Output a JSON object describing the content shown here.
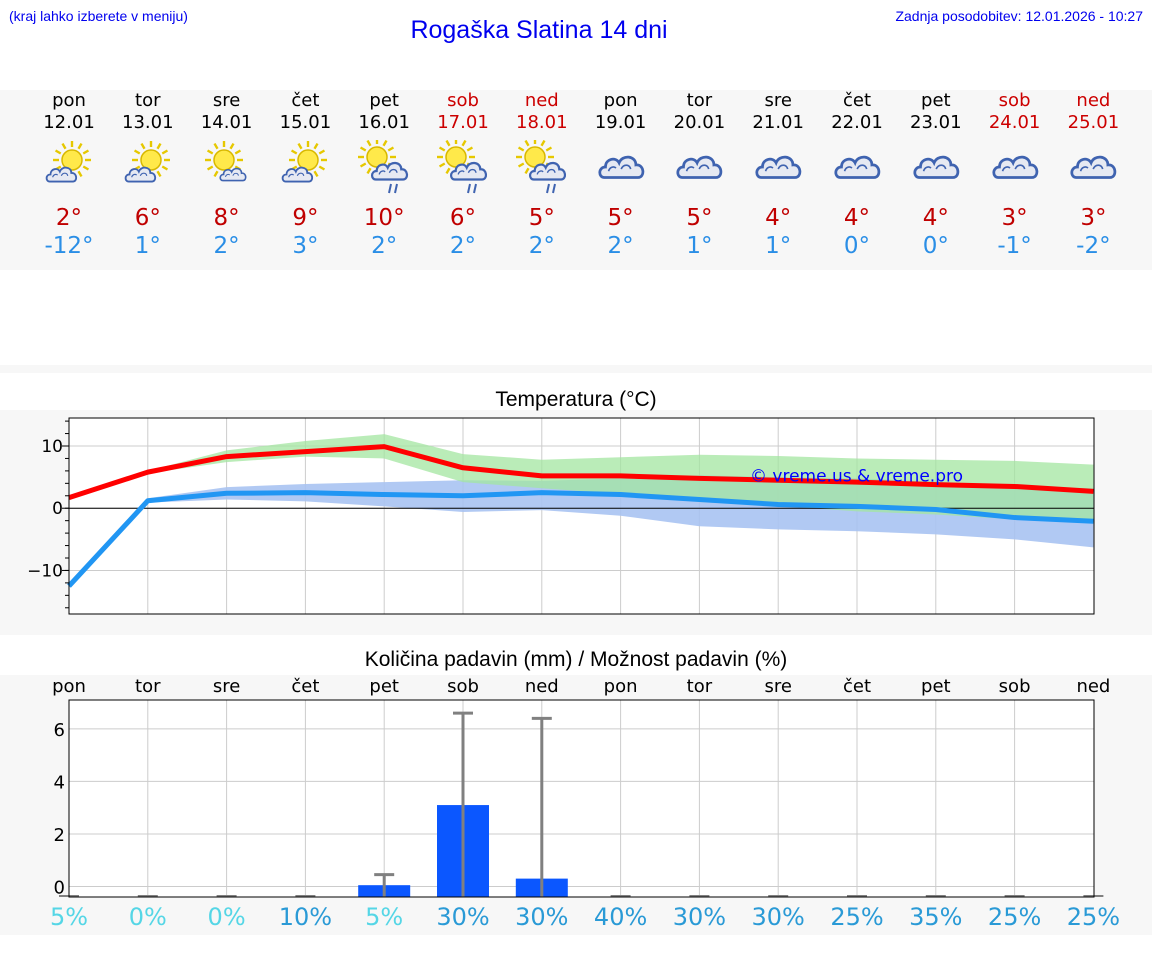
{
  "header": {
    "left_note": "(kraj lahko izberete v meniju)",
    "title": "Rogaška Slatina 14 dni",
    "updated": "Zadnja posodobitev: 12.01.2026 - 10:27"
  },
  "days": [
    {
      "name": "pon",
      "date": "12.01",
      "weekend": false,
      "icon": "sun-cloud-icon",
      "tmax": "2°",
      "tmin": "-12°"
    },
    {
      "name": "tor",
      "date": "13.01",
      "weekend": false,
      "icon": "sun-cloud-icon",
      "tmax": "6°",
      "tmin": "1°"
    },
    {
      "name": "sre",
      "date": "14.01",
      "weekend": false,
      "icon": "sun-small-cloud-icon",
      "tmax": "8°",
      "tmin": "2°"
    },
    {
      "name": "čet",
      "date": "15.01",
      "weekend": false,
      "icon": "sun-cloud-icon",
      "tmax": "9°",
      "tmin": "3°"
    },
    {
      "name": "pet",
      "date": "16.01",
      "weekend": false,
      "icon": "sun-cloud-rain-icon",
      "tmax": "10°",
      "tmin": "2°"
    },
    {
      "name": "sob",
      "date": "17.01",
      "weekend": true,
      "icon": "sun-cloud-rain-icon",
      "tmax": "6°",
      "tmin": "2°"
    },
    {
      "name": "ned",
      "date": "18.01",
      "weekend": true,
      "icon": "sun-cloud-rain-icon",
      "tmax": "5°",
      "tmin": "2°"
    },
    {
      "name": "pon",
      "date": "19.01",
      "weekend": false,
      "icon": "cloud-icon",
      "tmax": "5°",
      "tmin": "2°"
    },
    {
      "name": "tor",
      "date": "20.01",
      "weekend": false,
      "icon": "cloud-icon",
      "tmax": "5°",
      "tmin": "1°"
    },
    {
      "name": "sre",
      "date": "21.01",
      "weekend": false,
      "icon": "cloud-icon",
      "tmax": "4°",
      "tmin": "1°"
    },
    {
      "name": "čet",
      "date": "22.01",
      "weekend": false,
      "icon": "cloud-icon",
      "tmax": "4°",
      "tmin": "0°"
    },
    {
      "name": "pet",
      "date": "23.01",
      "weekend": false,
      "icon": "cloud-icon",
      "tmax": "4°",
      "tmin": "0°"
    },
    {
      "name": "sob",
      "date": "24.01",
      "weekend": true,
      "icon": "cloud-icon",
      "tmax": "3°",
      "tmin": "-1°"
    },
    {
      "name": "ned",
      "date": "25.01",
      "weekend": true,
      "icon": "cloud-icon",
      "tmax": "3°",
      "tmin": "-2°"
    }
  ],
  "colors": {
    "max": "#ff0000",
    "min": "#2196f3",
    "max_band": "#a3e6a0",
    "min_band": "#a9c3f2",
    "overlap": "#7ebea2",
    "bar": "#0b57ff",
    "err": "#808080",
    "pct_low": "#55d6e6",
    "pct_high": "#2a9ad6"
  },
  "chart_data": [
    {
      "type": "line",
      "title": "Temperatura (°C)",
      "ylim": [
        -17,
        14.5
      ],
      "yticks": [
        -10,
        0,
        10
      ],
      "ytick_labels": [
        "−10",
        "0",
        "10"
      ],
      "x": [
        0,
        1,
        2,
        3,
        4,
        5,
        6,
        7,
        8,
        9,
        10,
        11,
        12,
        13
      ],
      "series": [
        {
          "name": "max",
          "values": [
            1.7,
            5.8,
            8.3,
            9.1,
            9.9,
            6.5,
            5.2,
            5.2,
            4.8,
            4.5,
            4.2,
            3.8,
            3.5,
            2.7
          ]
        },
        {
          "name": "min",
          "values": [
            -12.5,
            1.2,
            2.4,
            2.5,
            2.2,
            2.0,
            2.5,
            2.2,
            1.4,
            0.6,
            0.3,
            -0.2,
            -1.5,
            -2.1
          ]
        }
      ],
      "max_band": {
        "low": [
          1.7,
          5.6,
          7.4,
          8.3,
          8.0,
          4.2,
          3.2,
          2.3,
          1.0,
          0.4,
          -0.5,
          -1.0,
          -1.8,
          -2.3
        ],
        "high": [
          1.8,
          6.0,
          9.3,
          10.8,
          11.9,
          8.7,
          7.8,
          8.2,
          8.6,
          8.4,
          8.0,
          7.8,
          7.6,
          7.0
        ]
      },
      "min_band": {
        "low": [
          -12.6,
          0.9,
          1.4,
          1.1,
          0.3,
          -0.6,
          -0.3,
          -1.2,
          -2.9,
          -3.4,
          -3.7,
          -4.2,
          -5.0,
          -6.3
        ],
        "high": [
          -12.4,
          1.6,
          3.4,
          3.9,
          4.2,
          4.5,
          4.4,
          4.8,
          5.3,
          5.0,
          4.8,
          4.3,
          3.5,
          3.2
        ]
      },
      "watermark": "© vreme.us & vreme.pro"
    },
    {
      "type": "bar",
      "title": "Količina padavin (mm) / Možnost padavin (%)",
      "categories": [
        "pon",
        "tor",
        "sre",
        "čet",
        "pet",
        "sob",
        "ned",
        "pon",
        "tor",
        "sre",
        "čet",
        "pet",
        "sob",
        "ned"
      ],
      "ylim": [
        -0.4,
        7.1
      ],
      "yticks": [
        0,
        2,
        4,
        6
      ],
      "values": [
        0,
        0,
        0,
        0,
        0.05,
        3.1,
        0.3,
        0,
        0,
        0,
        0,
        0,
        0,
        0
      ],
      "err_high": [
        0,
        0,
        0,
        0,
        0.45,
        6.6,
        6.4,
        0,
        0,
        0,
        0,
        0,
        0,
        0
      ],
      "chance": [
        "5%",
        "0%",
        "0%",
        "10%",
        "5%",
        "30%",
        "30%",
        "40%",
        "30%",
        "30%",
        "25%",
        "35%",
        "25%",
        "25%"
      ]
    }
  ]
}
